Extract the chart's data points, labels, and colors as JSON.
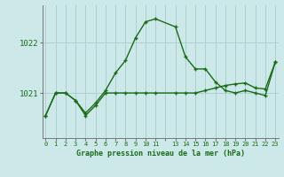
{
  "xlabel": "Graphe pression niveau de la mer (hPa)",
  "bg_color": "#cce8e8",
  "grid_color": "#aacccc",
  "line_color": "#1a6b1a",
  "line1_x": [
    0,
    1,
    2,
    3,
    4,
    5,
    6,
    7,
    8,
    9,
    10,
    11,
    13,
    14,
    15,
    16,
    17,
    18,
    19,
    20,
    21,
    22,
    23
  ],
  "line1_y": [
    1020.55,
    1021.0,
    1021.0,
    1020.85,
    1020.6,
    1020.8,
    1021.05,
    1021.4,
    1021.65,
    1022.1,
    1022.42,
    1022.48,
    1022.32,
    1021.72,
    1021.48,
    1021.48,
    1021.22,
    1021.05,
    1021.0,
    1021.05,
    1021.0,
    1020.95,
    1021.62
  ],
  "line2_x": [
    0,
    1,
    2,
    3,
    4,
    5,
    6,
    7,
    8,
    9,
    10,
    11,
    13,
    14,
    15,
    16,
    17,
    18,
    19,
    20,
    21,
    22,
    23
  ],
  "line2_y": [
    1020.55,
    1021.0,
    1021.0,
    1020.85,
    1020.55,
    1020.75,
    1021.0,
    1021.0,
    1021.0,
    1021.0,
    1021.0,
    1021.0,
    1021.0,
    1021.0,
    1021.0,
    1021.05,
    1021.1,
    1021.15,
    1021.18,
    1021.2,
    1021.1,
    1021.08,
    1021.62
  ],
  "yticks": [
    1021,
    1022
  ],
  "ylim": [
    1020.1,
    1022.75
  ],
  "xlim": [
    -0.3,
    23.3
  ],
  "xtick_labels": [
    "0",
    "1",
    "2",
    "3",
    "4",
    "5",
    "6",
    "7",
    "8",
    "9",
    "10",
    "11",
    "",
    "13",
    "14",
    "15",
    "16",
    "17",
    "18",
    "19",
    "20",
    "21",
    "22",
    "23"
  ]
}
